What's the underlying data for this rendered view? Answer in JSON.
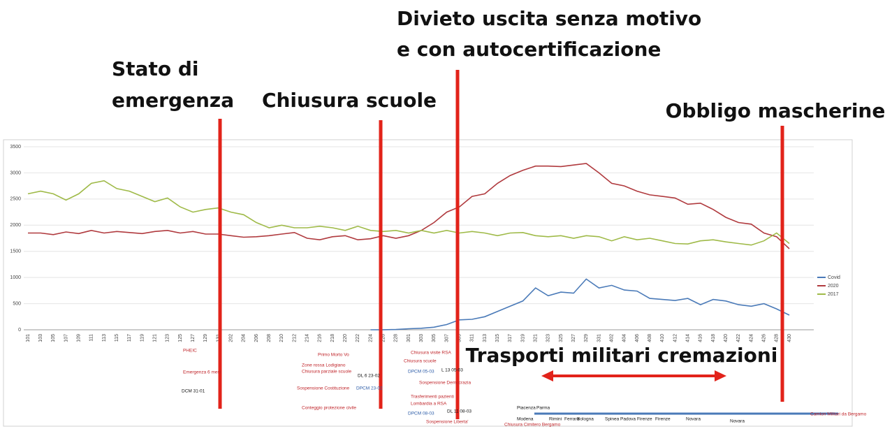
{
  "chart_data": {
    "type": "line",
    "categories": [
      "101",
      "103",
      "105",
      "107",
      "109",
      "111",
      "113",
      "115",
      "117",
      "119",
      "121",
      "123",
      "125",
      "127",
      "129",
      "131",
      "202",
      "204",
      "206",
      "208",
      "210",
      "212",
      "214",
      "216",
      "218",
      "220",
      "222",
      "224",
      "226",
      "228",
      "301",
      "303",
      "305",
      "307",
      "309",
      "311",
      "313",
      "315",
      "317",
      "319",
      "321",
      "323",
      "325",
      "327",
      "329",
      "331",
      "402",
      "404",
      "406",
      "408",
      "410",
      "412",
      "414",
      "416",
      "418",
      "420",
      "422",
      "424",
      "426",
      "428",
      "430"
    ],
    "series": [
      {
        "name": "Covid",
        "color": "#4a7ab8",
        "values": [
          null,
          null,
          null,
          null,
          null,
          null,
          null,
          null,
          null,
          null,
          null,
          null,
          null,
          null,
          null,
          null,
          null,
          null,
          null,
          null,
          null,
          null,
          null,
          null,
          null,
          null,
          null,
          0,
          2,
          5,
          20,
          30,
          50,
          100,
          190,
          200,
          250,
          350,
          450,
          550,
          800,
          650,
          720,
          700,
          970,
          800,
          850,
          760,
          740,
          600,
          580,
          560,
          600,
          480,
          580,
          550,
          480,
          450,
          500,
          400,
          280
        ]
      },
      {
        "name": "2020",
        "color": "#b03a3e",
        "values": [
          1850,
          1850,
          1820,
          1870,
          1840,
          1900,
          1850,
          1880,
          1860,
          1840,
          1880,
          1900,
          1850,
          1880,
          1830,
          1830,
          1800,
          1770,
          1780,
          1800,
          1830,
          1860,
          1750,
          1720,
          1780,
          1800,
          1720,
          1740,
          1800,
          1750,
          1800,
          1900,
          2050,
          2250,
          2350,
          2550,
          2600,
          2800,
          2950,
          3050,
          3130,
          3130,
          3120,
          3150,
          3180,
          3000,
          2800,
          2750,
          2650,
          2580,
          2550,
          2520,
          2400,
          2420,
          2300,
          2150,
          2050,
          2020,
          1850,
          1780,
          1550
        ]
      },
      {
        "name": "2017",
        "color": "#9fba48",
        "values": [
          2600,
          2650,
          2600,
          2480,
          2600,
          2800,
          2850,
          2700,
          2650,
          2550,
          2450,
          2520,
          2350,
          2250,
          2300,
          2330,
          2250,
          2200,
          2050,
          1950,
          2000,
          1950,
          1950,
          1980,
          1950,
          1900,
          1980,
          1900,
          1880,
          1900,
          1850,
          1900,
          1850,
          1900,
          1850,
          1880,
          1850,
          1800,
          1850,
          1860,
          1800,
          1780,
          1800,
          1750,
          1800,
          1780,
          1700,
          1780,
          1720,
          1750,
          1700,
          1650,
          1640,
          1700,
          1720,
          1680,
          1650,
          1620,
          1700,
          1850,
          1650
        ]
      }
    ],
    "ylim": [
      0,
      3500
    ],
    "yticks": [
      0,
      500,
      1000,
      1500,
      2000,
      2500,
      3000,
      3500
    ],
    "grid": true,
    "legend": "right",
    "events": [
      {
        "lines": [
          "Stato di",
          "emergenza"
        ],
        "color": "#e2231a"
      },
      {
        "lines": [
          "Chiusura scuole"
        ],
        "color": "#e2231a"
      },
      {
        "lines": [
          "Divieto uscita senza motivo",
          " e con autocertificazione"
        ],
        "color": "#e2231a"
      },
      {
        "lines": [
          "Obbligo mascherine"
        ],
        "color": "#e2231a"
      }
    ],
    "highlight": "Trasporti militari cremazioni",
    "notes": [
      "PHEIC",
      "Emergenza 6 mesi",
      "DCM 31-01",
      "Primo Morto Vo",
      "Zone rossa Lodigiano",
      "Chiusura parziale scuole",
      "Sospensione  Costituzione",
      "DL 6 23-02",
      "DPCM 23-02",
      "Conteggio protezione civile",
      "Chiusura visite RSA",
      "Chiusura scuole",
      "DPCM 05-03",
      "L 13 05-03",
      "Sospensione  Democrazia",
      "Trasferimenti pazienti",
      "Lombardia a RSA",
      "DPCM 08-03",
      "DL 11 08-03",
      "Sospensione  Liberta'",
      "Camion Militari da Bergamo",
      "Piacenza",
      "Parma",
      "Modena",
      "Rimini",
      "Ferrara",
      "Bologna",
      "Spinea",
      "Padova",
      "Firenze",
      "Firenze",
      "Novara",
      "Novara",
      "Chiusura Cimitero Bergamo"
    ]
  }
}
